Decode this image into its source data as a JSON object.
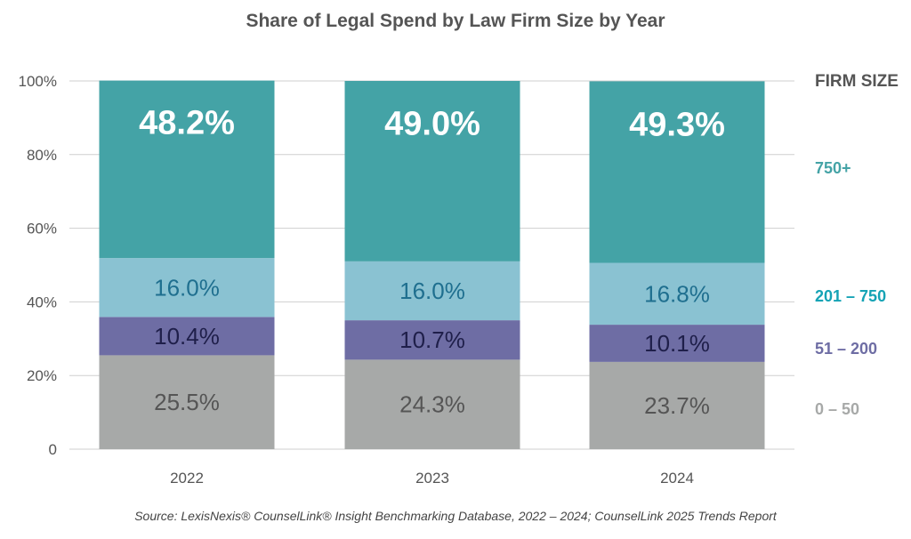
{
  "chart_data": {
    "type": "bar",
    "stacked": true,
    "title": "Share of Legal Spend by Law Firm Size by Year",
    "source": "Source: LexisNexis® CounselLink® Insight Benchmarking Database, 2022 – 2024; CounselLink 2025 Trends Report",
    "categories": [
      "2022",
      "2023",
      "2024"
    ],
    "series": [
      {
        "name": "0 – 50",
        "values": [
          25.5,
          24.3,
          23.7
        ],
        "labels": [
          "25.5%",
          "24.3%",
          "23.7%"
        ],
        "color": "#a7a9a8",
        "label_color": "#555555"
      },
      {
        "name": "51 – 200",
        "values": [
          10.4,
          10.7,
          10.1
        ],
        "labels": [
          "10.4%",
          "10.7%",
          "10.1%"
        ],
        "color": "#6e6da4",
        "label_color": "#1f1f4a"
      },
      {
        "name": "201 – 750",
        "values": [
          16.0,
          16.0,
          16.8
        ],
        "labels": [
          "16.0%",
          "16.0%",
          "16.8%"
        ],
        "color": "#8ac2d2",
        "label_color": "#1f6f8f"
      },
      {
        "name": "750+",
        "values": [
          48.2,
          49.0,
          49.3
        ],
        "labels": [
          "48.2%",
          "49.0%",
          "49.3%"
        ],
        "color": "#44a3a6",
        "label_color": "#ffffff"
      }
    ],
    "legend_title": "FIRM SIZE",
    "legend_colors": [
      "#a7a9a8",
      "#6e6da4",
      "#15a3b5",
      "#44a3a6"
    ],
    "ylim": [
      0,
      100
    ],
    "yticks": [
      0,
      20,
      40,
      60,
      80,
      100
    ],
    "ytick_labels": [
      "0",
      "20%",
      "40%",
      "60%",
      "80%",
      "100%"
    ],
    "legend_placement": "right",
    "grid": true
  }
}
